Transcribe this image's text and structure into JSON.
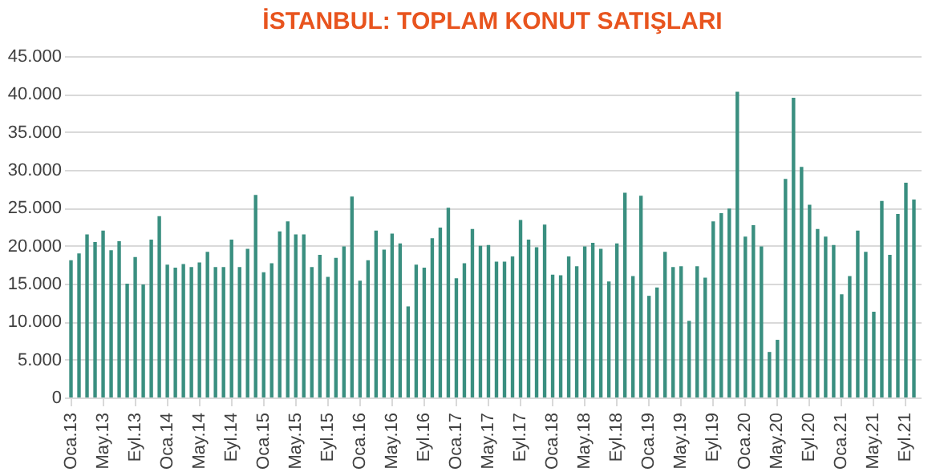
{
  "chart_data": {
    "type": "bar",
    "title": "İSTANBUL: TOPLAM KONUT SATIŞLARI",
    "categories": [
      "Oca.13",
      null,
      null,
      null,
      "May.13",
      null,
      null,
      null,
      "Eyl.13",
      null,
      null,
      null,
      "Oca.14",
      null,
      null,
      null,
      "May.14",
      null,
      null,
      null,
      "Eyl.14",
      null,
      null,
      null,
      "Oca.15",
      null,
      null,
      null,
      "May.15",
      null,
      null,
      null,
      "Eyl.15",
      null,
      null,
      null,
      "Oca.16",
      null,
      null,
      null,
      "May.16",
      null,
      null,
      null,
      "Eyl.16",
      null,
      null,
      null,
      "Oca.17",
      null,
      null,
      null,
      "May.17",
      null,
      null,
      null,
      "Eyl.17",
      null,
      null,
      null,
      "Oca.18",
      null,
      null,
      null,
      "May.18",
      null,
      null,
      null,
      "Eyl.18",
      null,
      null,
      null,
      "Oca.19",
      null,
      null,
      null,
      "May.19",
      null,
      null,
      null,
      "Eyl.19",
      null,
      null,
      null,
      "Oca.20",
      null,
      null,
      null,
      "May.20",
      null,
      null,
      null,
      "Eyl.20",
      null,
      null,
      null,
      "Oca.21",
      null,
      null,
      null,
      "May.21",
      null,
      null,
      null,
      "Eyl.21",
      null
    ],
    "values": [
      18100,
      19000,
      21500,
      20500,
      22000,
      19400,
      20600,
      15000,
      18500,
      14900,
      20800,
      23900,
      17500,
      17100,
      17600,
      17200,
      17800,
      19200,
      17200,
      17200,
      20800,
      17200,
      19600,
      26700,
      16500,
      17700,
      21900,
      23200,
      21500,
      21500,
      17200,
      18800,
      15900,
      18400,
      19900,
      26500,
      15400,
      18100,
      22000,
      19500,
      21600,
      20300,
      12000,
      17500,
      17100,
      21000,
      22400,
      25000,
      15700,
      17700,
      22200,
      20000,
      20100,
      17900,
      17900,
      18600,
      23400,
      20800,
      19800,
      22800,
      16200,
      16100,
      18600,
      17300,
      19900,
      20400,
      19600,
      15300,
      20300,
      27000,
      16000,
      26600,
      13400,
      14500,
      19200,
      17200,
      17300,
      10100,
      17300,
      15800,
      23200,
      24300,
      24900,
      40300,
      21200,
      22700,
      19900,
      6000,
      7600,
      28800,
      39500,
      30400,
      25400,
      22200,
      21200,
      20100,
      13600,
      16000,
      22000,
      19200,
      11300,
      25900,
      18800,
      24200,
      28300,
      26100
    ],
    "color": "#3a8f80",
    "ylim": [
      0,
      45000
    ],
    "yticks": [
      {
        "value": 0,
        "label": "0"
      },
      {
        "value": 5000,
        "label": "5.000"
      },
      {
        "value": 10000,
        "label": "10.000"
      },
      {
        "value": 15000,
        "label": "15.000"
      },
      {
        "value": 20000,
        "label": "20.000"
      },
      {
        "value": 25000,
        "label": "25.000"
      },
      {
        "value": 30000,
        "label": "30.000"
      },
      {
        "value": 35000,
        "label": "35.000"
      },
      {
        "value": 40000,
        "label": "40.000"
      },
      {
        "value": 45000,
        "label": "45.000"
      }
    ],
    "grid": "y"
  }
}
